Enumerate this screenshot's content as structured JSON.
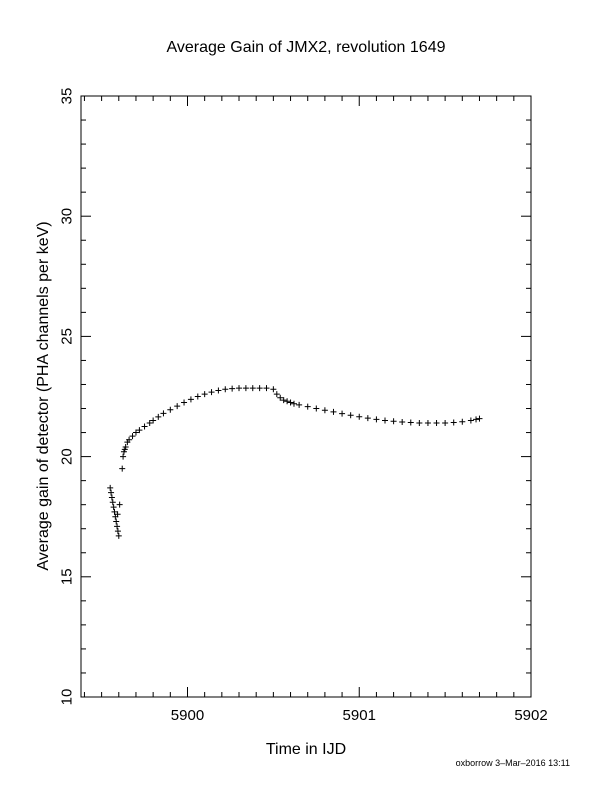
{
  "chart_data": {
    "type": "scatter",
    "title": "Average Gain of JMX2, revolution 1649",
    "xlabel": "Time in IJD",
    "ylabel": "Average gain of detector (PHA channels per keV)",
    "xlim": [
      5899.38,
      5902.0
    ],
    "ylim": [
      10,
      35
    ],
    "xticks": [
      5900,
      5901,
      5902
    ],
    "xtick_labels": [
      "5900",
      "5901",
      "5902"
    ],
    "yticks": [
      10,
      15,
      20,
      25,
      30,
      35
    ],
    "ytick_labels": [
      "10",
      "15",
      "20",
      "25",
      "30",
      "35"
    ],
    "x_minor_step": 0.1,
    "y_minor_step": 1,
    "grid": false,
    "legend": "none",
    "marker": "+",
    "color": "#000000",
    "series": [
      {
        "x": [
          5899.55,
          5899.555,
          5899.56,
          5899.565,
          5899.57,
          5899.575,
          5899.58,
          5899.585,
          5899.59,
          5899.595,
          5899.6,
          5899.605,
          5899.593,
          5899.62,
          5899.625,
          5899.63,
          5899.635,
          5899.64,
          5899.65,
          5899.66,
          5899.68,
          5899.7,
          5899.72,
          5899.75,
          5899.78,
          5899.8,
          5899.83,
          5899.86,
          5899.9,
          5899.94,
          5899.98,
          5900.02,
          5900.06,
          5900.1,
          5900.14,
          5900.18,
          5900.22,
          5900.26,
          5900.3,
          5900.34,
          5900.38,
          5900.42,
          5900.46,
          5900.5,
          5900.52,
          5900.54,
          5900.56,
          5900.58,
          5900.6,
          5900.62,
          5900.65,
          5900.7,
          5900.75,
          5900.8,
          5900.85,
          5900.9,
          5900.95,
          5901.0,
          5901.05,
          5901.1,
          5901.15,
          5901.2,
          5901.25,
          5901.3,
          5901.35,
          5901.4,
          5901.45,
          5901.5,
          5901.55,
          5901.6,
          5901.65,
          5901.68,
          5901.7
        ],
        "y": [
          18.7,
          18.5,
          18.3,
          18.1,
          17.9,
          17.7,
          17.5,
          17.3,
          17.1,
          16.9,
          16.7,
          18.0,
          17.6,
          19.5,
          20.0,
          20.2,
          20.3,
          20.4,
          20.6,
          20.7,
          20.85,
          21.0,
          21.1,
          21.25,
          21.4,
          21.5,
          21.65,
          21.8,
          21.95,
          22.1,
          22.25,
          22.38,
          22.5,
          22.6,
          22.68,
          22.75,
          22.8,
          22.83,
          22.85,
          22.85,
          22.85,
          22.85,
          22.85,
          22.8,
          22.6,
          22.45,
          22.35,
          22.3,
          22.25,
          22.2,
          22.15,
          22.08,
          22.0,
          21.93,
          21.86,
          21.79,
          21.72,
          21.66,
          21.6,
          21.55,
          21.5,
          21.47,
          21.44,
          21.42,
          21.4,
          21.4,
          21.4,
          21.4,
          21.42,
          21.45,
          21.5,
          21.55,
          21.58
        ]
      }
    ]
  },
  "footer": "oxborrow  3–Mar–2016 13:11"
}
